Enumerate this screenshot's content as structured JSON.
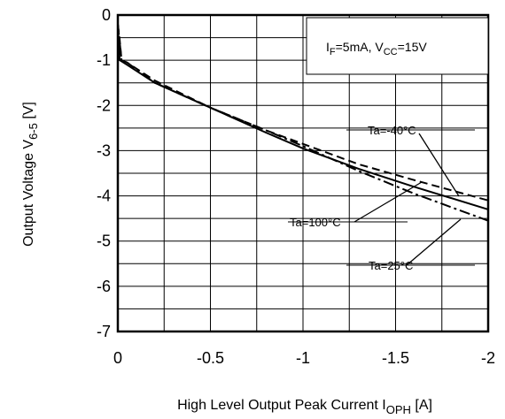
{
  "chart_data": {
    "type": "line",
    "title": "",
    "condition": {
      "i_main": "I",
      "i_sub": "F",
      "i_val": "=5mA, V",
      "v_sub": "CC",
      "v_val": "=15V"
    },
    "xlabel": {
      "main": "High Level Output Peak Current I",
      "sub": "OPH",
      "unit": " [A]"
    },
    "ylabel": {
      "main": "Output Voltage V",
      "sub": "6-5",
      "unit": " [V]"
    },
    "xlim": [
      0,
      -2
    ],
    "ylim": [
      -7,
      0
    ],
    "xticks": [
      0,
      -0.5,
      -1,
      -1.5,
      -2
    ],
    "xtick_labels": [
      "0",
      "-0.5",
      "-1",
      "-1.5",
      "-2"
    ],
    "yticks": [
      0,
      -1,
      -2,
      -3,
      -4,
      -5,
      -6,
      -7
    ],
    "ytick_labels": [
      "0",
      "-1",
      "-2",
      "-3",
      "-4",
      "-5",
      "-6",
      "-7"
    ],
    "grid": true,
    "series": [
      {
        "name": "Ta=-40°C",
        "style": "dashed",
        "x": [
          0,
          -0.01,
          -0.02,
          -0.05,
          -0.2,
          -0.5,
          -0.8,
          -1.0,
          -1.3,
          -1.6,
          -2.0
        ],
        "y": [
          -0.2,
          -0.55,
          -1.0,
          -1.05,
          -1.45,
          -2.05,
          -2.55,
          -2.85,
          -3.3,
          -3.65,
          -4.1
        ]
      },
      {
        "name": "Ta=100°C",
        "style": "solid",
        "x": [
          0,
          -0.005,
          -0.01,
          -0.05,
          -0.2,
          -0.5,
          -0.8,
          -1.0,
          -1.3,
          -1.6,
          -2.0
        ],
        "y": [
          -0.2,
          -0.6,
          -1.0,
          -1.1,
          -1.5,
          -2.05,
          -2.6,
          -2.95,
          -3.4,
          -3.8,
          -4.3
        ]
      },
      {
        "name": "Ta=25°C",
        "style": "dashdot",
        "x": [
          0,
          -0.01,
          -0.02,
          -0.05,
          -0.2,
          -0.5,
          -0.8,
          -1.0,
          -1.3,
          -1.6,
          -2.0
        ],
        "y": [
          -0.2,
          -0.6,
          -1.0,
          -1.05,
          -1.5,
          -2.05,
          -2.55,
          -2.9,
          -3.45,
          -3.95,
          -4.55
        ]
      }
    ],
    "annotations": [
      {
        "text": "Ta=-40°C",
        "series": "Ta=-40°C"
      },
      {
        "text": "Ta=100°C",
        "series": "Ta=100°C"
      },
      {
        "text": "Ta=25°C",
        "series": "Ta=25°C"
      }
    ]
  }
}
